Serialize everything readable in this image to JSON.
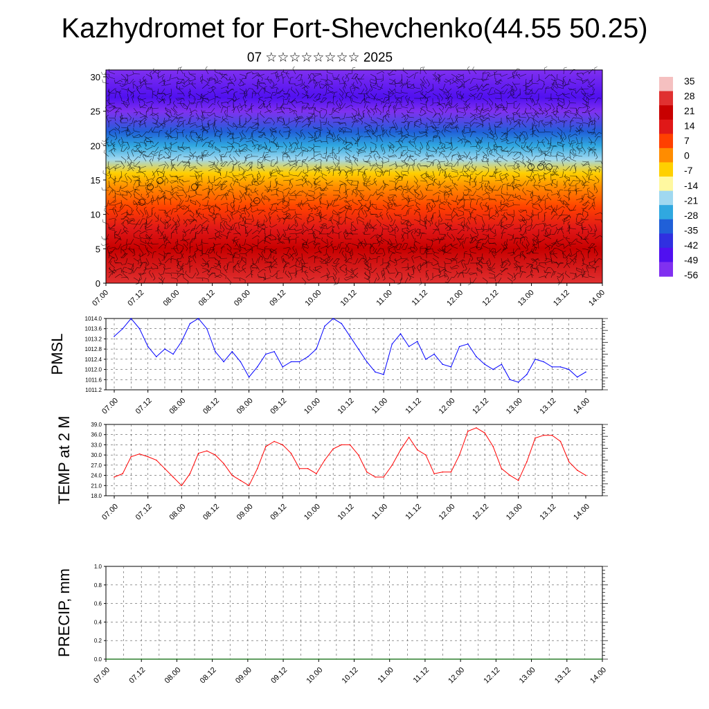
{
  "title": "Kazhydromet for Fort-Shevchenko(44.55 50.25)",
  "subtitle": "07 ☆☆☆☆☆☆☆☆ 2025",
  "colors": {
    "pmsl_line": "#0000ff",
    "temp_line": "#ff0000",
    "precip_line": "#006400"
  },
  "chart_data": [
    {
      "id": "cross_section",
      "type": "heatmap",
      "title": "",
      "xlabel": "",
      "ylabel": "",
      "x_tick_labels": [
        "07.00",
        "07.12",
        "08.00",
        "08.12",
        "09.00",
        "09.12",
        "10.00",
        "10.12",
        "11.00",
        "11.12",
        "12.00",
        "12.12",
        "13.00",
        "13.12",
        "14.00"
      ],
      "y_ticks": [
        0,
        5,
        10,
        15,
        20,
        25,
        30
      ],
      "ylim": [
        0,
        31
      ],
      "colorbar": {
        "labels": [
          "35",
          "28",
          "21",
          "14",
          "7",
          "0",
          "-7",
          "-14",
          "-21",
          "-28",
          "-35",
          "-42",
          "-49",
          "-56"
        ],
        "colors": [
          "#f5c0c0",
          "#e03030",
          "#c80000",
          "#e01818",
          "#ff4000",
          "#ff8c00",
          "#ffd000",
          "#fff8a0",
          "#a0d8f0",
          "#30a8e0",
          "#2060d8",
          "#3030e0",
          "#5010f0",
          "#8030f0"
        ]
      },
      "temperature_profile": [
        {
          "level": 0,
          "temp": 30
        },
        {
          "level": 5,
          "temp": 21
        },
        {
          "level": 8,
          "temp": 14
        },
        {
          "level": 11,
          "temp": 5
        },
        {
          "level": 14,
          "temp": -3
        },
        {
          "level": 16,
          "temp": -10
        },
        {
          "level": 18,
          "temp": -18
        },
        {
          "level": 20,
          "temp": -28
        },
        {
          "level": 22,
          "temp": -38
        },
        {
          "level": 25,
          "temp": -55
        },
        {
          "level": 27,
          "temp": -50
        },
        {
          "level": 31,
          "temp": -60
        }
      ]
    },
    {
      "id": "pmsl",
      "type": "line",
      "ylabel": "PMSL",
      "ylim": [
        1011.2,
        1014.0
      ],
      "y_tick_labels": [
        "1014.0",
        "1013.6",
        "1013.2",
        "1012.8",
        "1012.4",
        "1012.0",
        "1011.6",
        "1011.2"
      ],
      "x_tick_labels": [
        "07.00",
        "07.12",
        "08.00",
        "08.12",
        "09.00",
        "09.12",
        "10.00",
        "10.12",
        "11.00",
        "11.12",
        "12.00",
        "12.12",
        "13.00",
        "13.12",
        "14.00"
      ],
      "series": [
        {
          "values": [
            1013.3,
            1013.6,
            1014.0,
            1013.6,
            1012.9,
            1012.5,
            1012.8,
            1012.6,
            1013.1,
            1013.8,
            1014.0,
            1013.6,
            1012.7,
            1012.3,
            1012.7,
            1012.3,
            1011.7,
            1012.1,
            1012.6,
            1012.7,
            1012.1,
            1012.3,
            1012.3,
            1012.5,
            1012.8,
            1013.7,
            1014.0,
            1013.8,
            1013.3,
            1012.8,
            1012.3,
            1011.9,
            1011.8,
            1013.0,
            1013.4,
            1012.9,
            1013.1,
            1012.4,
            1012.6,
            1012.2,
            1012.1,
            1012.9,
            1013.0,
            1012.5,
            1012.2,
            1012.0,
            1012.2,
            1011.6,
            1011.5,
            1011.8,
            1012.4,
            1012.3,
            1012.1,
            1012.1,
            1012.0,
            1011.7,
            1011.9
          ]
        }
      ]
    },
    {
      "id": "temp2m",
      "type": "line",
      "ylabel": "TEMP at 2 M",
      "ylim": [
        18.0,
        39.0
      ],
      "y_tick_labels": [
        "39.0",
        "36.0",
        "33.0",
        "30.0",
        "27.0",
        "24.0",
        "21.0",
        "18.0"
      ],
      "x_tick_labels": [
        "07.00",
        "07.12",
        "08.00",
        "08.12",
        "09.00",
        "09.12",
        "10.00",
        "10.12",
        "11.00",
        "11.12",
        "12.00",
        "12.12",
        "13.00",
        "13.12",
        "14.00"
      ],
      "series": [
        {
          "values": [
            23.5,
            24.5,
            29.5,
            30.3,
            29.5,
            28.5,
            26.0,
            23.5,
            21.0,
            24.5,
            30.5,
            31.2,
            30.0,
            27.5,
            24.0,
            22.5,
            21.0,
            26.0,
            32.5,
            34.0,
            33.0,
            30.5,
            26.0,
            26.0,
            24.5,
            28.5,
            31.8,
            33.0,
            33.0,
            30.0,
            25.0,
            23.5,
            23.5,
            27.0,
            31.5,
            35.2,
            31.5,
            30.0,
            24.5,
            25.0,
            25.0,
            30.0,
            37.0,
            38.0,
            36.5,
            32.5,
            26.0,
            24.0,
            22.5,
            28.0,
            35.0,
            35.8,
            35.8,
            34.0,
            28.0,
            25.5,
            24.0
          ]
        }
      ]
    },
    {
      "id": "precip",
      "type": "line",
      "ylabel": "PRECIP, mm",
      "ylim": [
        0.0,
        1.0
      ],
      "y_tick_labels": [
        "1.0",
        "0.8",
        "0.6",
        "0.4",
        "0.2",
        "0.0"
      ],
      "x_tick_labels": [
        "07.00",
        "07.12",
        "08.00",
        "08.12",
        "09.00",
        "09.12",
        "10.00",
        "10.12",
        "11.00",
        "11.12",
        "12.00",
        "12.12",
        "13.00",
        "13.12",
        "14.00"
      ],
      "series": [
        {
          "values": [
            0,
            0,
            0,
            0,
            0,
            0,
            0,
            0,
            0,
            0,
            0,
            0,
            0,
            0,
            0,
            0,
            0,
            0,
            0,
            0,
            0,
            0,
            0,
            0,
            0,
            0,
            0,
            0,
            0,
            0,
            0,
            0,
            0,
            0,
            0,
            0,
            0,
            0,
            0,
            0,
            0,
            0,
            0,
            0,
            0,
            0,
            0,
            0,
            0,
            0,
            0,
            0,
            0,
            0,
            0,
            0,
            0
          ]
        }
      ]
    }
  ]
}
